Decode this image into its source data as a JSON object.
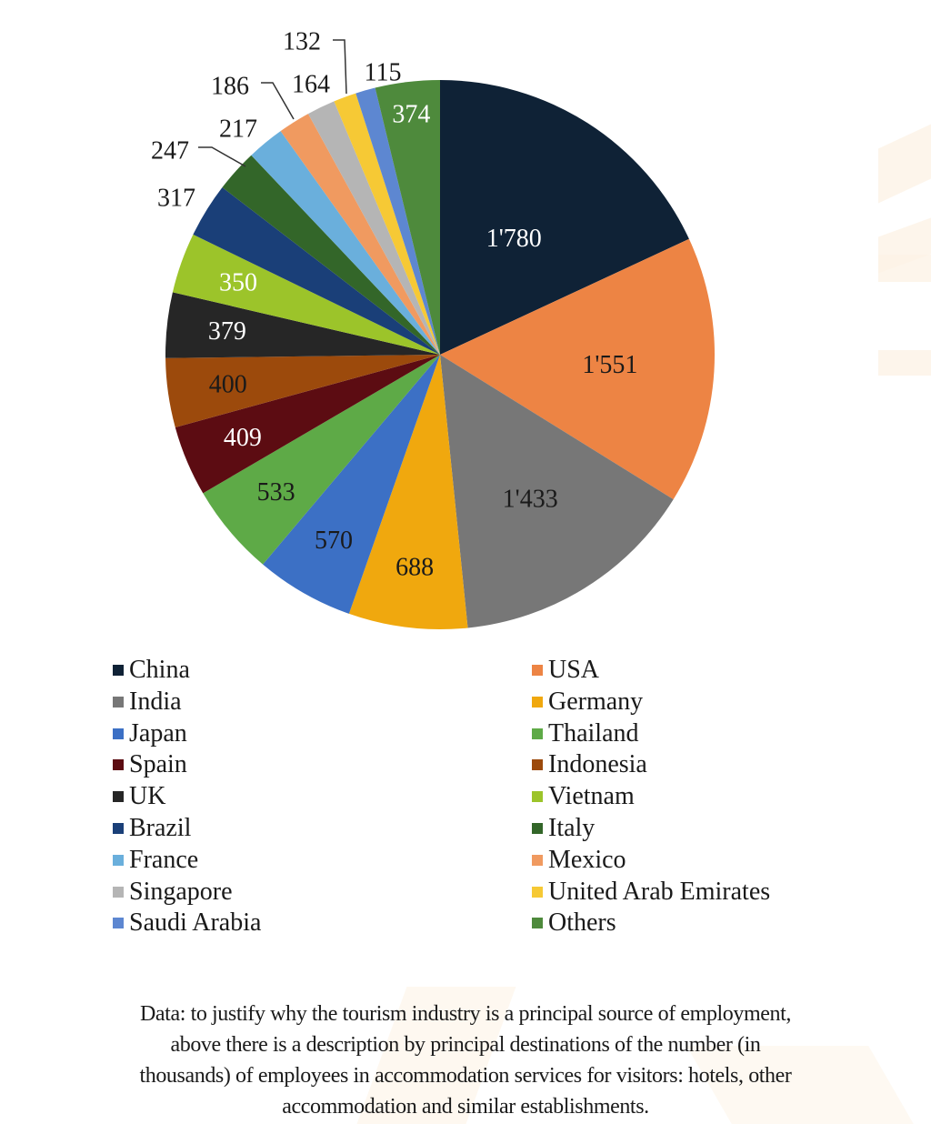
{
  "chart_data": {
    "type": "pie",
    "title": "",
    "start_angle": "12 o'clock",
    "direction": "clockwise",
    "categories": [
      "China",
      "USA",
      "India",
      "Germany",
      "Japan",
      "Thailand",
      "Spain",
      "Indonesia",
      "UK",
      "Vietnam",
      "Brazil",
      "Italy",
      "France",
      "Mexico",
      "Singapore",
      "United Arab Emirates",
      "Saudi Arabia",
      "Others"
    ],
    "values": [
      1780,
      1551,
      1433,
      688,
      570,
      533,
      409,
      400,
      379,
      350,
      317,
      247,
      217,
      186,
      164,
      132,
      115,
      374
    ],
    "labels": [
      "1'780",
      "1'551",
      "1'433",
      "688",
      "570",
      "533",
      "409",
      "400",
      "379",
      "350",
      "317",
      "247",
      "217",
      "186",
      "164",
      "132",
      "115",
      "374"
    ],
    "colors": [
      "#0f2236",
      "#ed8444",
      "#777777",
      "#f0a80e",
      "#3c70c5",
      "#5eaa47",
      "#5c0c12",
      "#9c4a0c",
      "#262626",
      "#9cc42a",
      "#1a3f78",
      "#336629",
      "#6aafdc",
      "#f09a60",
      "#b5b5b5",
      "#f6c935",
      "#5d87d1",
      "#4e8a3c"
    ],
    "label_colors": [
      "#ffffff",
      "#1a1a1a",
      "#1a1a1a",
      "#1a1a1a",
      "#1a1a1a",
      "#1a1a1a",
      "#ffffff",
      "#1a1a1a",
      "#ffffff",
      "#ffffff",
      "#1a1a1a",
      "#1a1a1a",
      "#1a1a1a",
      "#1a1a1a",
      "#1a1a1a",
      "#1a1a1a",
      "#1a1a1a",
      "#ffffff"
    ],
    "unit": "thousands of employees",
    "legend_position": "bottom, two columns"
  },
  "legend": {
    "left": [
      "China",
      "India",
      "Japan",
      "Spain",
      "UK",
      "Brazil",
      "France",
      "Singapore",
      "Saudi Arabia"
    ],
    "right": [
      "USA",
      "Germany",
      "Thailand",
      "Indonesia",
      "Vietnam",
      "Italy",
      "Mexico",
      "United Arab Emirates",
      "Others"
    ]
  },
  "caption": {
    "line1": "Data: to justify why the tourism industry is a principal source of employment,",
    "line2": "above there is a description by principal destinations of the number (in",
    "line3": "thousands) of employees in accommodation services for visitors: hotels, other",
    "line4": "accommodation and similar establishments."
  }
}
